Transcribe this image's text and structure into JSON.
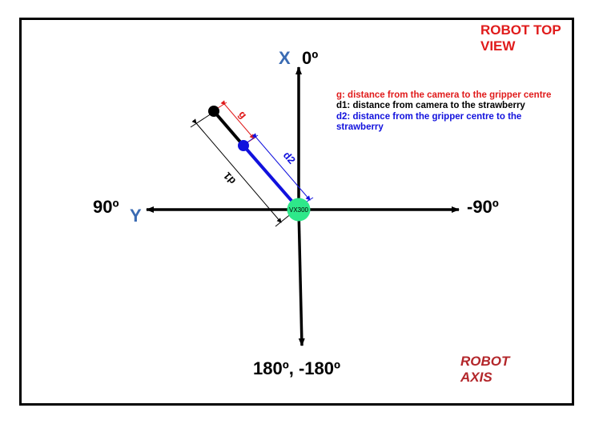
{
  "title": {
    "line1": "ROBOT TOP",
    "line2": "VIEW"
  },
  "axes": {
    "x_letter": "X",
    "top_angle": "0º",
    "left_angle": "90º",
    "y_letter": "Y",
    "right_angle": "-90º",
    "bottom_angle": "180º, -180º"
  },
  "legend": {
    "g": "g: distance from the camera to  the gripper centre",
    "d1": "d1: distance from camera to the strawberry",
    "d2_line1": "d2: distance from the gripper centre to the",
    "d2_line2": "strawberry"
  },
  "labels": {
    "g": "g",
    "d1": "d1",
    "d2": "d2",
    "base": "VX300"
  },
  "footer": {
    "line1": "ROBOT",
    "line2": "AXIS"
  },
  "colors": {
    "red": "#e01b1b",
    "blue": "#1111dd",
    "base_green": "#2ee88a",
    "axis_letter": "#3a6bb3",
    "robot_axis": "#b3262a"
  }
}
